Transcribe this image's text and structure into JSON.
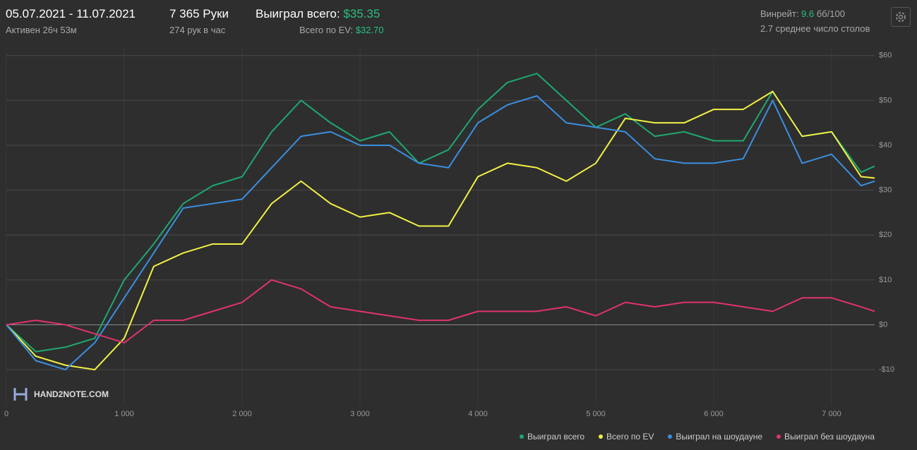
{
  "header": {
    "dates": "05.07.2021 - 11.07.2021",
    "active": "Активен 26ч 53м",
    "hands": "7 365 Руки",
    "hands_per_hour": "274 рук в час",
    "won_label": "Выиграл всего:",
    "won_value": "$35.35",
    "ev_label": "Всего по EV:",
    "ev_value": "$32.70",
    "winrate_label": "Винрейт:",
    "winrate_value": "9.6",
    "winrate_unit": "бб/100",
    "tables": "2.7 среднее число столов"
  },
  "logo": "HAND2NOTE.COM",
  "chart_data": {
    "type": "line",
    "grid": true,
    "legend": "bottom-right",
    "xlim": [
      0,
      7365
    ],
    "ylim": [
      -18,
      62
    ],
    "xticks": [
      0,
      {
        "value": 1000,
        "label": "1 000"
      },
      {
        "value": 2000,
        "label": "2 000"
      },
      {
        "value": 3000,
        "label": "3 000"
      },
      {
        "value": 4000,
        "label": "4 000"
      },
      {
        "value": 5000,
        "label": "5 000"
      },
      {
        "value": 6000,
        "label": "6 000"
      },
      {
        "value": 7000,
        "label": "7 000"
      }
    ],
    "yticks": [
      {
        "value": -10,
        "label": "-$10"
      },
      {
        "value": 0,
        "label": "$0"
      },
      {
        "value": 10,
        "label": "$10"
      },
      {
        "value": 20,
        "label": "$20"
      },
      {
        "value": 30,
        "label": "$30"
      },
      {
        "value": 40,
        "label": "$40"
      },
      {
        "value": 50,
        "label": "$50"
      },
      {
        "value": 60,
        "label": "$60"
      }
    ],
    "x": [
      0,
      250,
      500,
      750,
      1000,
      1250,
      1500,
      1750,
      2000,
      2250,
      2500,
      2750,
      3000,
      3250,
      3500,
      3750,
      4000,
      4250,
      4500,
      4750,
      5000,
      5250,
      5500,
      5750,
      6000,
      6250,
      6500,
      6750,
      7000,
      7250,
      7365
    ],
    "series": [
      {
        "name": "Выиграл всего",
        "color": "#1fa870",
        "values": [
          0,
          -6,
          -5,
          -3,
          10,
          18,
          27,
          31,
          33,
          43,
          50,
          45,
          41,
          43,
          36,
          39,
          48,
          54,
          56,
          50,
          44,
          47,
          42,
          43,
          41,
          41,
          52,
          42,
          43,
          34,
          35.35
        ]
      },
      {
        "name": "Всего по EV",
        "color": "#f1f144",
        "values": [
          0,
          -7,
          -9,
          -10,
          -3,
          13,
          16,
          18,
          18,
          27,
          32,
          27,
          24,
          25,
          22,
          22,
          33,
          36,
          35,
          32,
          36,
          46,
          45,
          45,
          48,
          48,
          52,
          42,
          43,
          33,
          32.7
        ]
      },
      {
        "name": "Выиграл на шоудауне",
        "color": "#3b8fe0",
        "values": [
          0,
          -8,
          -10,
          -4,
          6,
          16,
          26,
          27,
          28,
          35,
          42,
          43,
          40,
          40,
          36,
          35,
          45,
          49,
          51,
          45,
          44,
          43,
          37,
          36,
          36,
          37,
          50,
          36,
          38,
          31,
          32
        ]
      },
      {
        "name": "Выиграл без шоудауна",
        "color": "#e0336d",
        "values": [
          0,
          1,
          0,
          -2,
          -4,
          1,
          1,
          3,
          5,
          10,
          8,
          4,
          3,
          2,
          1,
          1,
          3,
          3,
          3,
          4,
          2,
          5,
          4,
          5,
          5,
          4,
          3,
          6,
          6,
          4,
          3
        ]
      }
    ]
  }
}
